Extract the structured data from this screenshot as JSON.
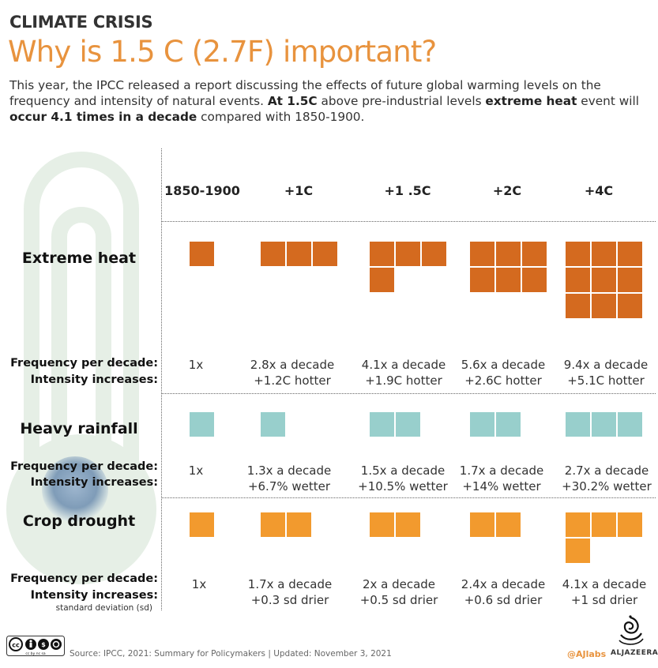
{
  "header": {
    "eyebrow": "CLIMATE CRISIS",
    "headline": "Why is 1.5 C (2.7F) important?",
    "intro": {
      "p1": "This year, the IPCC released a report discussing the effects of future global warming levels on the frequency and intensity of natural events. ",
      "b1": "At 1.5C",
      "p2": " above pre-industrial levels ",
      "b2": "extreme heat",
      "p3": " event will ",
      "b3": "occur 4.1 times in a decade",
      "p4": " compared with 1850-1900."
    }
  },
  "colors": {
    "heat": "#d46a1f",
    "rain": "#98cfcc",
    "drought": "#f29a2e",
    "accent": "#e8933e"
  },
  "chart_data": {
    "type": "table",
    "columns": [
      "1850-1900",
      "+1C",
      "+1 .5C",
      "+2C",
      "+4C"
    ],
    "rows": [
      {
        "name": "Extreme heat",
        "frequency_label": "Frequency per decade:",
        "intensity_label": "Intensity increases:",
        "squares": [
          1,
          3,
          4,
          6,
          9
        ],
        "frequency": [
          "1x",
          "2.8x a decade",
          "4.1x a decade",
          "5.6x a decade",
          "9.4x a decade"
        ],
        "intensity": [
          "",
          "+1.2C hotter",
          "+1.9C hotter",
          "+2.6C hotter",
          "+5.1C hotter"
        ]
      },
      {
        "name": "Heavy rainfall",
        "frequency_label": "Frequency per decade:",
        "intensity_label": "Intensity increases:",
        "squares": [
          1,
          1,
          2,
          2,
          3
        ],
        "frequency": [
          "1x",
          "1.3x a decade",
          "1.5x a decade",
          "1.7x a decade",
          "2.7x a decade"
        ],
        "intensity": [
          "",
          "+6.7% wetter",
          "+10.5% wetter",
          "+14% wetter",
          "+30.2% wetter"
        ]
      },
      {
        "name": "Crop drought",
        "frequency_label": "Frequency per decade:",
        "intensity_label": "Intensity increases:",
        "intensity_note": "standard deviation (sd)",
        "squares": [
          1,
          2,
          2,
          2,
          4
        ],
        "frequency": [
          "1x",
          "1.7x a decade",
          "2x a decade",
          "2.4x a decade",
          "4.1x a decade"
        ],
        "intensity": [
          "",
          "+0.3 sd drier",
          "+0.5 sd drier",
          "+0.6 sd drier",
          "+1 sd drier"
        ]
      }
    ]
  },
  "footer": {
    "license": "cc by nc sa",
    "source": "Source: IPCC, 2021: Summary for Policymakers | Updated: November 3, 2021",
    "handle": "@AJlabs",
    "brand": "ALJAZEERA"
  }
}
